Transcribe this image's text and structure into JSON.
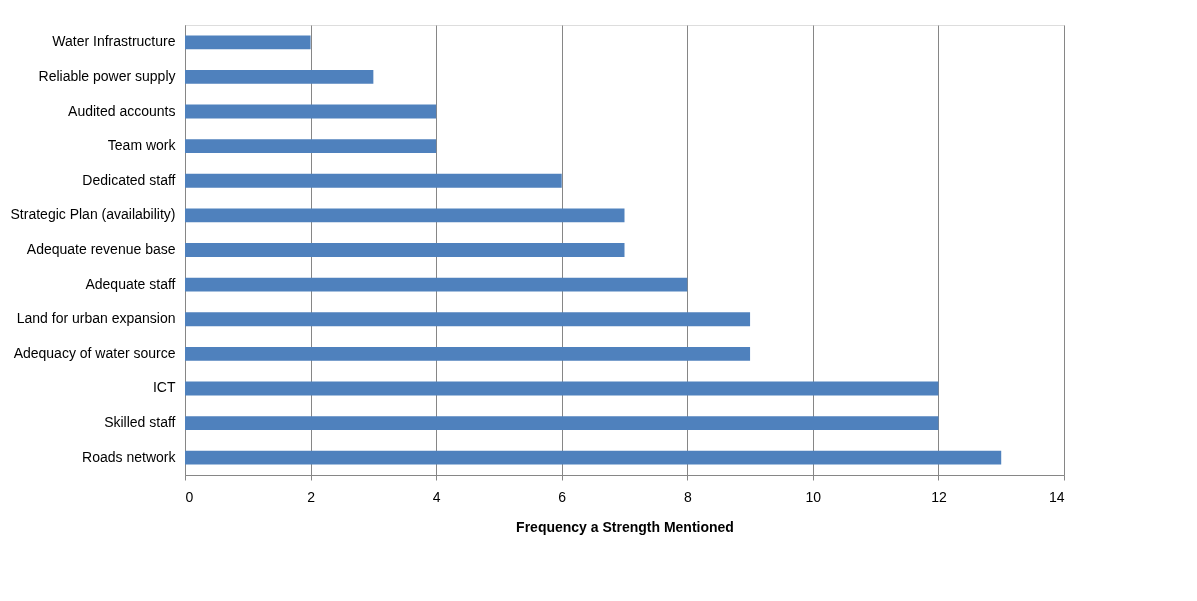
{
  "chart_data": {
    "type": "bar",
    "orientation": "horizontal",
    "categories": [
      "Water Infrastructure",
      "Reliable power supply",
      "Audited accounts",
      "Team work",
      "Dedicated staff",
      "Strategic Plan (availability)",
      "Adequate revenue base",
      "Adequate staff",
      "Land for urban expansion",
      "Adequacy of water source",
      "ICT",
      "Skilled staff",
      "Roads network"
    ],
    "values": [
      2,
      3,
      4,
      4,
      6,
      7,
      7,
      8,
      9,
      9,
      12,
      12,
      13
    ],
    "color": "#4f81bd",
    "xlabel": "Frequency a Strength Mentioned",
    "xlim": [
      0,
      14
    ],
    "xticks": [
      0,
      2,
      4,
      6,
      8,
      10,
      12,
      14
    ],
    "grid": "x"
  }
}
